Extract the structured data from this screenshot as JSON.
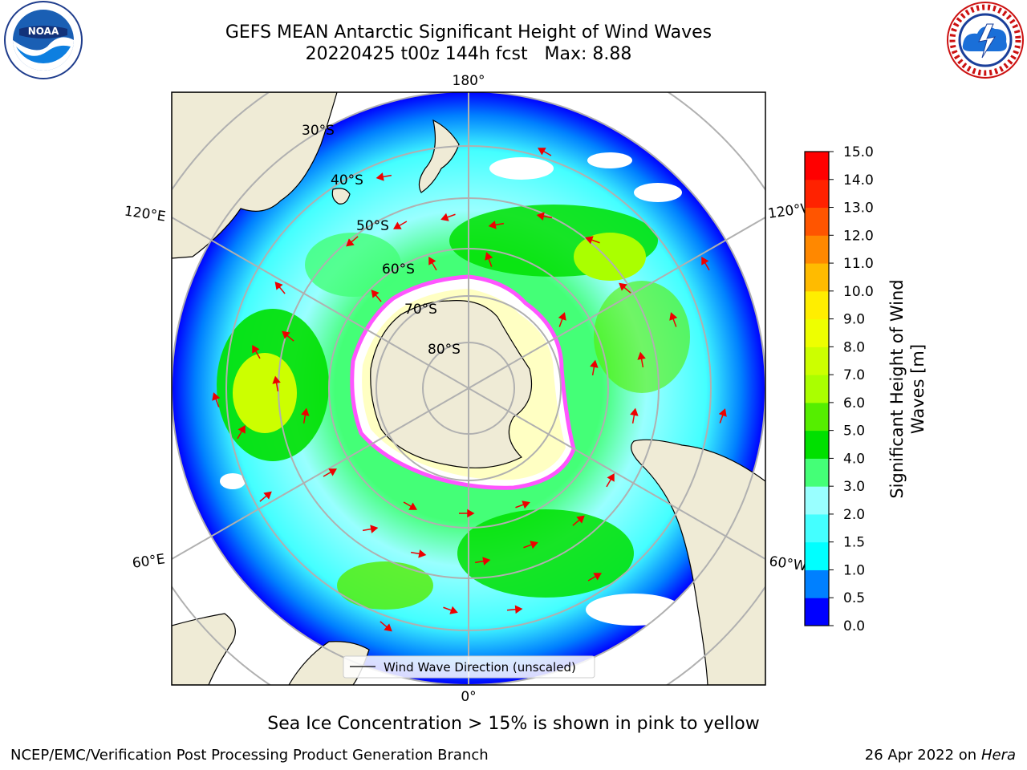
{
  "header": {
    "title_line1": "GEFS MEAN Antarctic Significant Height of Wind Waves",
    "title_line2": "20220425 t00z 144h fcst   Max: 8.88"
  },
  "logos": {
    "left": {
      "icon": "noaa-logo",
      "text": "NOAA"
    },
    "right": {
      "icon": "national-weather-service-logo",
      "text": "NATIONAL WEATHER SERVICE"
    }
  },
  "map": {
    "projection": "south-polar-stereographic",
    "longitude_labels": {
      "top": "180°",
      "bottom": "0°",
      "left_upper": "120°E",
      "left_lower": "60°E",
      "right_upper": "120°W",
      "right_lower": "60°W"
    },
    "latitude_labels": [
      "30°S",
      "40°S",
      "50°S",
      "60°S",
      "70°S",
      "80°S"
    ],
    "legend": "Wind Wave Direction (unscaled)",
    "colors": {
      "land": "#efebd6",
      "ice": "#ff55ff",
      "arrow": "#ee0000",
      "grid": "#b0b0b0"
    }
  },
  "colorbar": {
    "label": "Significant Height of Wind Waves [m]",
    "ticks": [
      "0.0",
      "0.5",
      "1.0",
      "1.5",
      "2.0",
      "3.0",
      "4.0",
      "5.0",
      "6.0",
      "7.0",
      "8.0",
      "9.0",
      "10.0",
      "11.0",
      "12.0",
      "13.0",
      "14.0",
      "15.0"
    ],
    "colors": [
      "#0000ff",
      "#0080ff",
      "#00ffff",
      "#44ffff",
      "#99ffff",
      "#44ff77",
      "#00e000",
      "#55ee00",
      "#aaff00",
      "#ccff00",
      "#eeff00",
      "#ffee00",
      "#ffbb00",
      "#ff8800",
      "#ff5500",
      "#ff2200",
      "#ff0000"
    ]
  },
  "caption": "Sea Ice Concentration > 15% is shown in pink to yellow",
  "footer": {
    "left": "NCEP/EMC/Verification Post Processing Product Generation Branch",
    "right_prefix": "26 Apr 2022 on ",
    "right_machine": "Hera"
  }
}
